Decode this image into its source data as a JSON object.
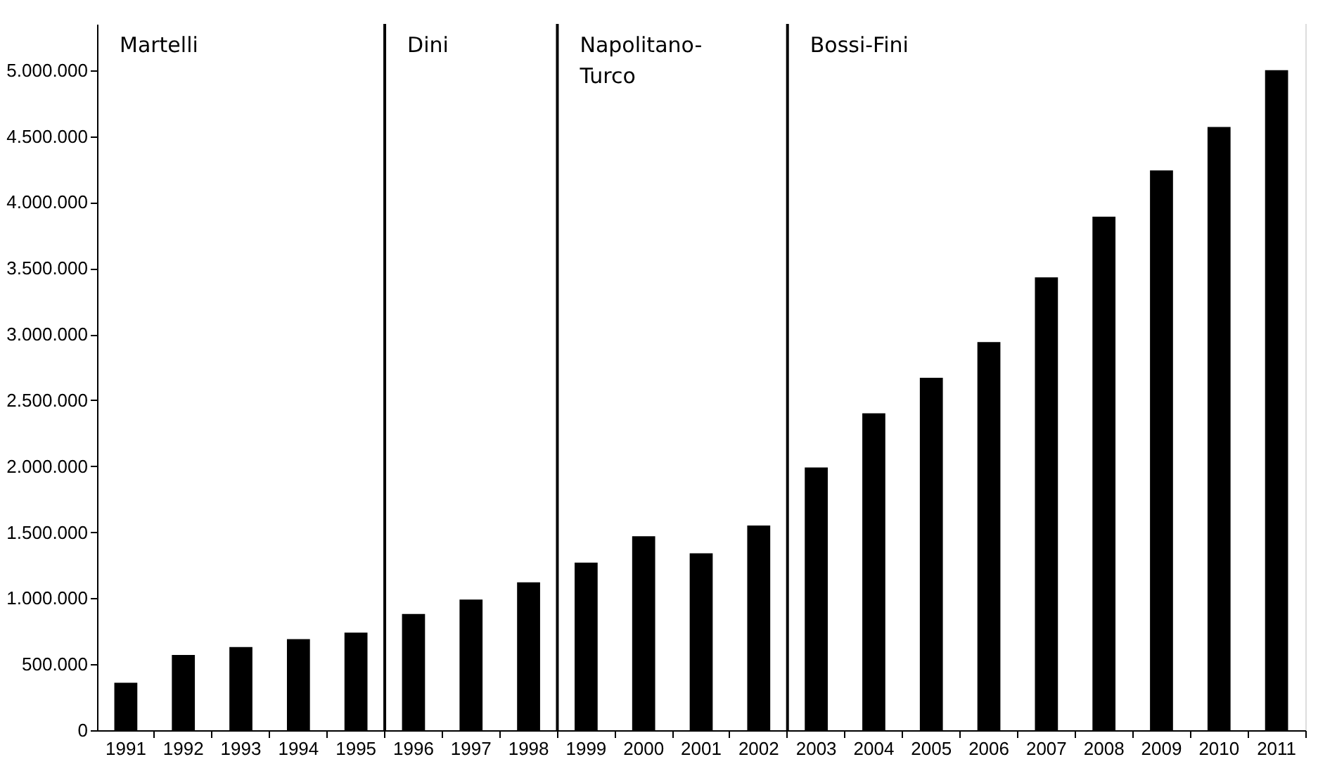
{
  "chart_data": {
    "type": "bar",
    "categories": [
      "1991",
      "1992",
      "1993",
      "1994",
      "1995",
      "1996",
      "1997",
      "1998",
      "1999",
      "2000",
      "2001",
      "2002",
      "2003",
      "2004",
      "2005",
      "2006",
      "2007",
      "2008",
      "2009",
      "2010",
      "2011"
    ],
    "values": [
      360000,
      570000,
      630000,
      690000,
      740000,
      880000,
      990000,
      1120000,
      1270000,
      1470000,
      1340000,
      1550000,
      1990000,
      2400000,
      2670000,
      2940000,
      3430000,
      3890000,
      4240000,
      4570000,
      5000000
    ],
    "color": "#000000",
    "ylim": [
      0,
      5350000
    ],
    "yticks": [
      {
        "value": 0,
        "label": "0"
      },
      {
        "value": 500000,
        "label": "500.000"
      },
      {
        "value": 1000000,
        "label": "1.000.000"
      },
      {
        "value": 1500000,
        "label": "1.500.000"
      },
      {
        "value": 2000000,
        "label": "2.000.000"
      },
      {
        "value": 2500000,
        "label": "2.500.000"
      },
      {
        "value": 3000000,
        "label": "3.000.000"
      },
      {
        "value": 3500000,
        "label": "3.500.000"
      },
      {
        "value": 4000000,
        "label": "4.000.000"
      },
      {
        "value": 4500000,
        "label": "4.500.000"
      },
      {
        "value": 5000000,
        "label": "5.000.000"
      }
    ],
    "bands": [
      {
        "axis": "x",
        "from": "1991",
        "to": "1995",
        "label": "Martelli",
        "color": "#ffffff"
      },
      {
        "axis": "x",
        "from": "1996",
        "to": "1998",
        "label": "Dini",
        "color": "#ffffff"
      },
      {
        "axis": "x",
        "from": "1999",
        "to": "2002",
        "label": "Napolitano-\nTurco",
        "color": "#ffffff"
      },
      {
        "axis": "x",
        "from": "2003",
        "to": "2011",
        "label": "Bossi-Fini",
        "color": "#ffffff"
      }
    ],
    "grid": false
  }
}
